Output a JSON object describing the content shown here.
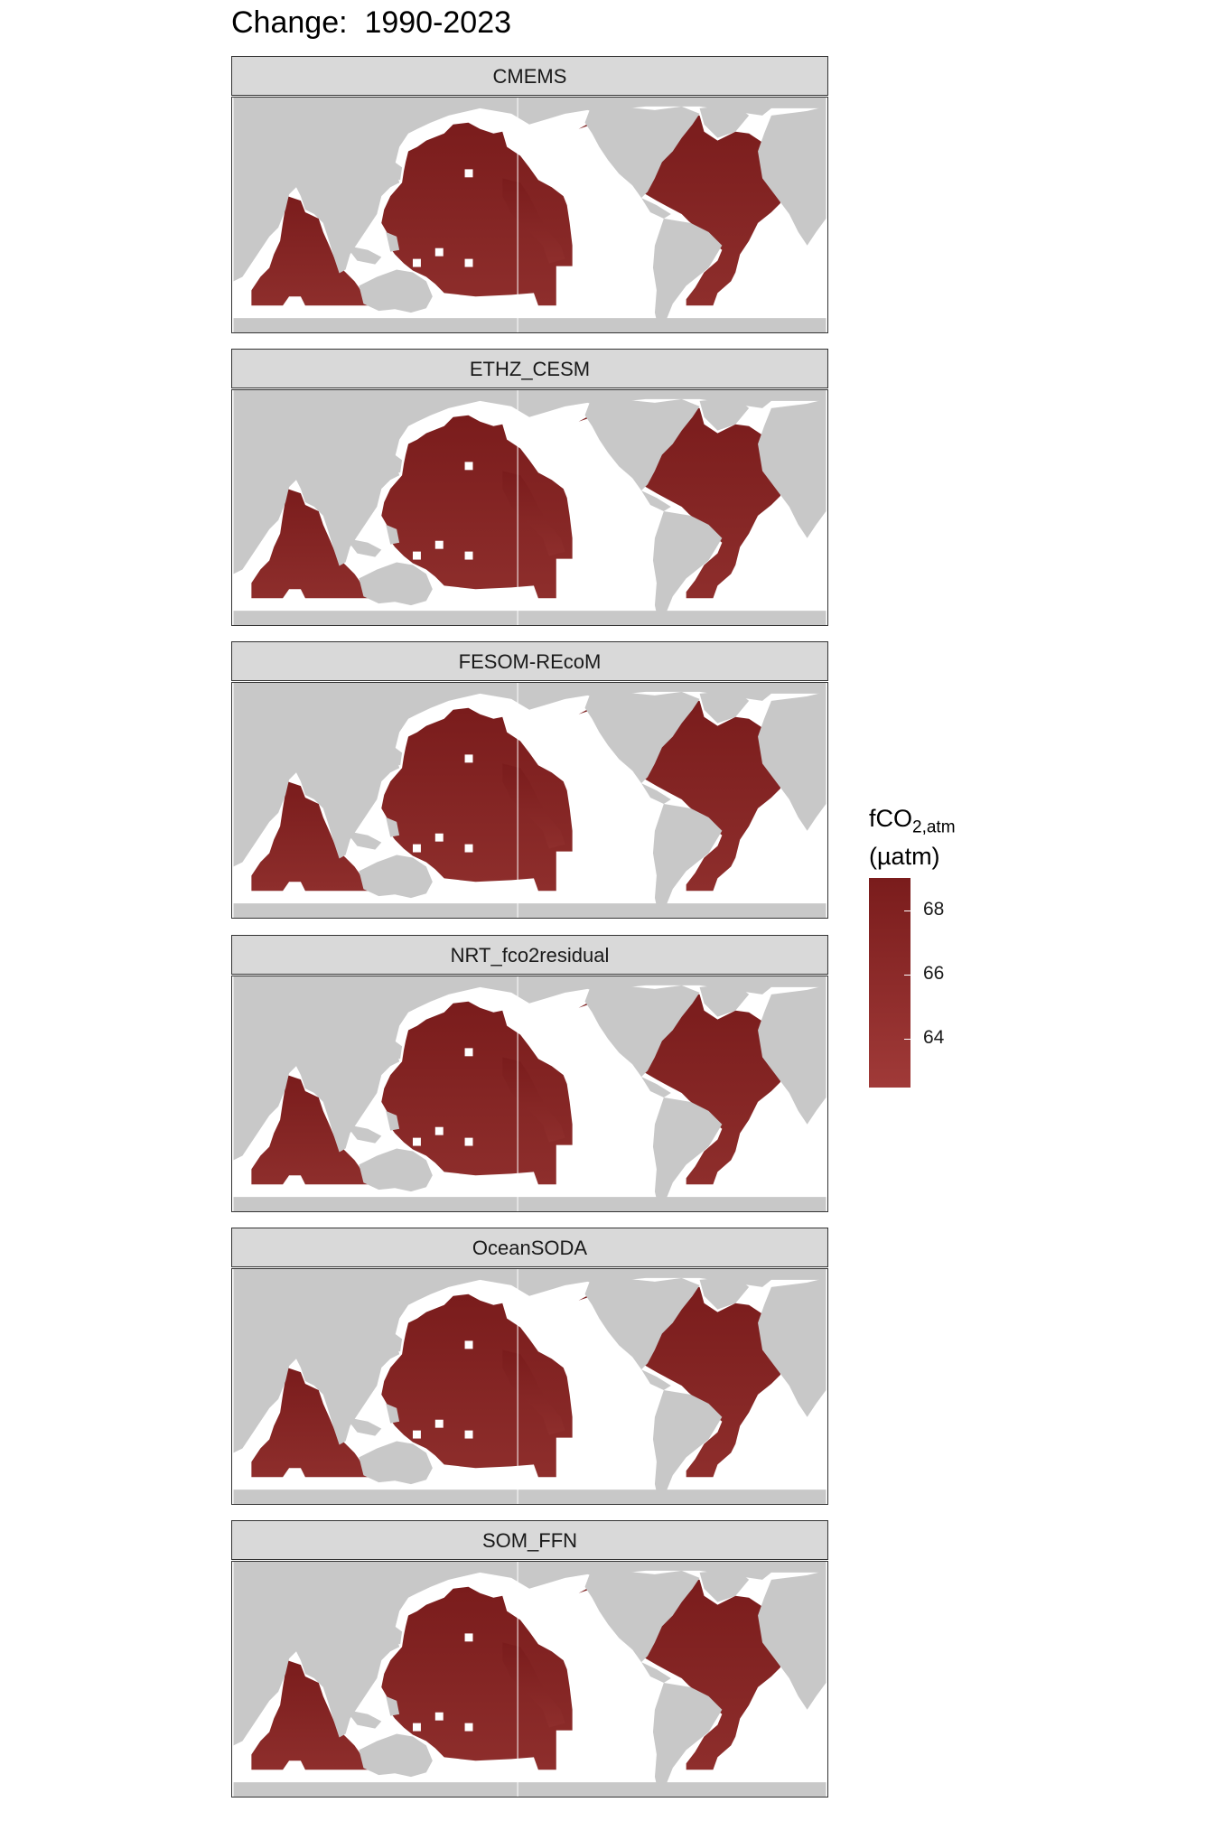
{
  "title": "Change:  1990-2023",
  "panels": [
    {
      "name": "CMEMS"
    },
    {
      "name": "ETHZ_CESM"
    },
    {
      "name": "FESOM-REcoM"
    },
    {
      "name": "NRT_fco2residual"
    },
    {
      "name": "OceanSODA"
    },
    {
      "name": "SOM_FFN"
    }
  ],
  "legend": {
    "title_main": "fCO",
    "title_sub": "2,atm",
    "title_unit": "(µatm)",
    "ticks": [
      {
        "value": 68,
        "label": "68"
      },
      {
        "value": 66,
        "label": "66"
      },
      {
        "value": 64,
        "label": "64"
      }
    ],
    "range": [
      62.5,
      69.0
    ],
    "colors": {
      "high": "#7a1c1c",
      "low": "#a03a38"
    }
  },
  "colors": {
    "land": "#c8c8c8",
    "ocean_fill": "#832624",
    "strip": "#d9d9d9"
  }
}
